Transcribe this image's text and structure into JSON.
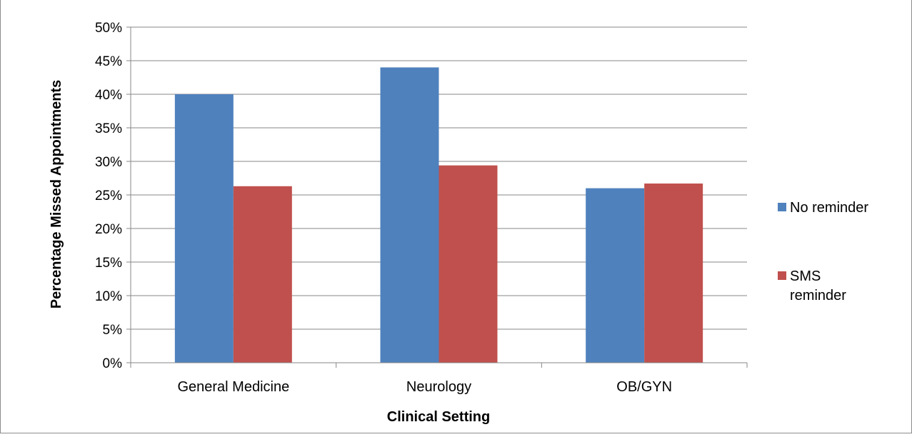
{
  "chart_data": {
    "type": "bar",
    "categories": [
      "General Medicine",
      "Neurology",
      "OB/GYN"
    ],
    "series": [
      {
        "name": "No reminder",
        "color": "#4f81bd",
        "values": [
          40.0,
          44.0,
          26.0
        ]
      },
      {
        "name": "SMS reminder",
        "color": "#c0504d",
        "values": [
          26.3,
          29.4,
          26.7
        ]
      }
    ],
    "title": "",
    "xlabel": "Clinical Setting",
    "ylabel": "Percentage Missed Appointments",
    "ylim": [
      0,
      50
    ],
    "y_ticks": [
      "0%",
      "5%",
      "10%",
      "15%",
      "20%",
      "25%",
      "30%",
      "35%",
      "40%",
      "45%",
      "50%"
    ],
    "grid": true,
    "legend_position": "right"
  }
}
